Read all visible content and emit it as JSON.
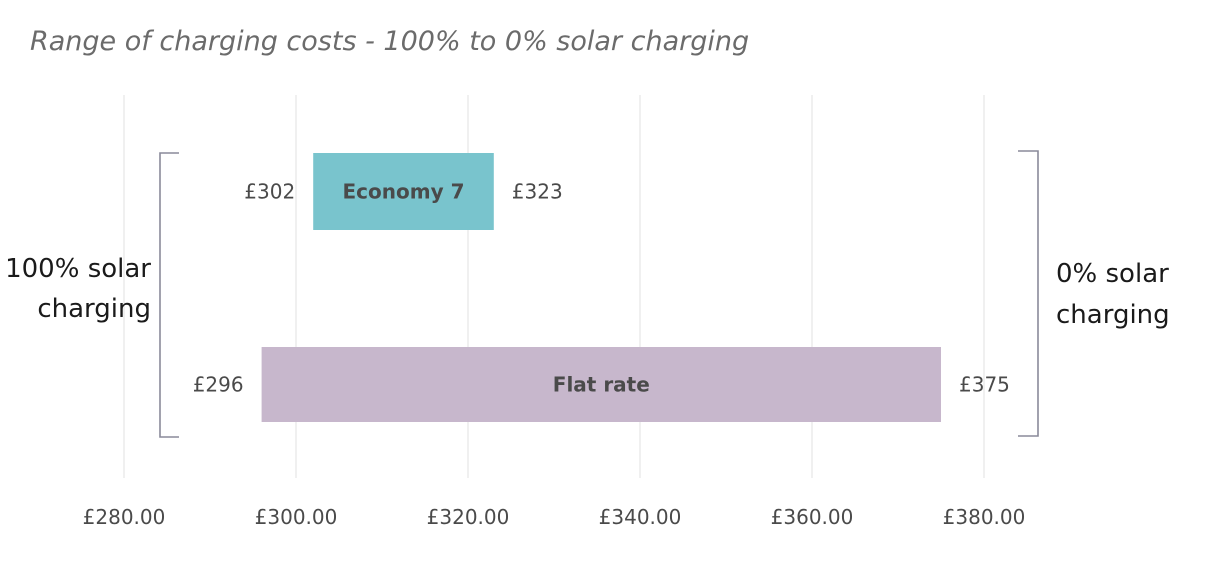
{
  "chart_data": {
    "type": "bar",
    "orientation": "horizontal",
    "title": "Range of charging costs - 100% to 0% solar charging",
    "xlim": [
      280,
      380
    ],
    "x_ticks": [
      280,
      300,
      320,
      340,
      360,
      380
    ],
    "x_tick_labels": [
      "£280.00",
      "£300.00",
      "£320.00",
      "£340.00",
      "£360.00",
      "£380.00"
    ],
    "grid": true,
    "bars": [
      {
        "label": "Economy 7",
        "start": 302,
        "end": 323,
        "start_label": "£302",
        "end_label": "£323",
        "color": "#79c4cd"
      },
      {
        "label": "Flat rate",
        "start": 296,
        "end": 375,
        "start_label": "£296",
        "end_label": "£375",
        "color": "#c7b7cc"
      }
    ],
    "left_annotation": [
      "100% solar",
      "charging"
    ],
    "right_annotation": [
      "0% solar",
      "charging"
    ]
  }
}
